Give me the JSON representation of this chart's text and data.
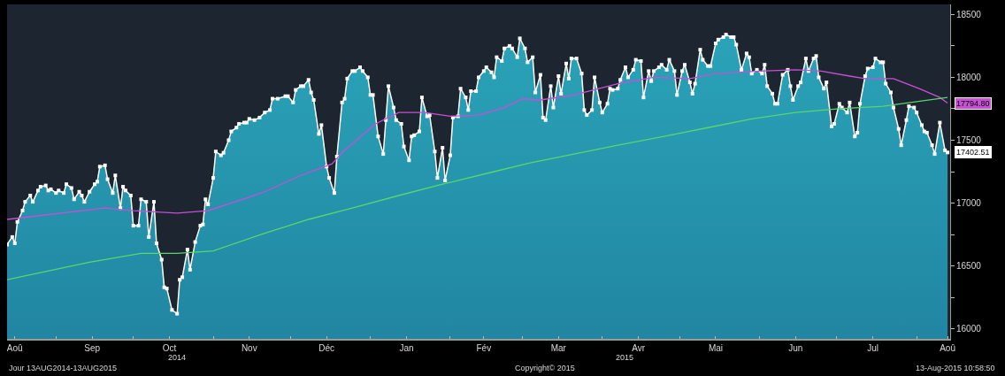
{
  "chart_data": {
    "type": "area",
    "xlim": [
      "2014-08-13",
      "2015-08-14"
    ],
    "xticks": [
      {
        "value": "2014-08-16",
        "label": "Aoû"
      },
      {
        "value": "2014-09-15",
        "label": "Sep"
      },
      {
        "value": "2014-10-15",
        "label": "Oct"
      },
      {
        "value": "2014-11-15",
        "label": "Nov"
      },
      {
        "value": "2014-12-15",
        "label": "Déc"
      },
      {
        "value": "2015-01-15",
        "label": "Jan"
      },
      {
        "value": "2015-02-14",
        "label": "Fév"
      },
      {
        "value": "2015-03-15",
        "label": "Mar"
      },
      {
        "value": "2015-04-15",
        "label": "Avr"
      },
      {
        "value": "2015-05-15",
        "label": "Mai"
      },
      {
        "value": "2015-06-15",
        "label": "Jun"
      },
      {
        "value": "2015-07-15",
        "label": "Jul"
      },
      {
        "value": "2015-08-13",
        "label": "Aoû"
      },
      {
        "value": "2014-09-01",
        "label": null
      },
      {
        "value": "2014-10-01",
        "label": null
      },
      {
        "value": "2014-11-01",
        "label": null
      },
      {
        "value": "2014-12-01",
        "label": null
      },
      {
        "value": "2015-01-01",
        "label": null
      },
      {
        "value": "2015-02-01",
        "label": null
      },
      {
        "value": "2015-03-01",
        "label": null
      },
      {
        "value": "2015-04-01",
        "label": null
      },
      {
        "value": "2015-05-01",
        "label": null
      },
      {
        "value": "2015-06-01",
        "label": null
      },
      {
        "value": "2015-07-01",
        "label": null
      },
      {
        "value": "2015-08-01",
        "label": null
      }
    ],
    "ylim": [
      15920,
      18580
    ],
    "yticks": [
      16000,
      {
        "value": 16250,
        "label": null
      },
      16500,
      {
        "value": 16750,
        "label": null
      },
      17000,
      {
        "value": 17250,
        "label": null
      },
      17500,
      {
        "value": 17750,
        "label": null
      },
      18000,
      {
        "value": 18250,
        "label": null
      },
      18500
    ],
    "grid": false,
    "annotations": [
      "2014",
      "2015",
      "Jour 13AUG2014-13AUG2015",
      "Copyright© 2015",
      "13-Aug-2015 10:58:50",
      {
        "text": "17794.80",
        "x": "2015-08-13",
        "y": 17794.8
      },
      {
        "text": "17402.51",
        "x": "2015-08-13",
        "y": 17402.51
      }
    ],
    "series": [
      {
        "color": "#ffffff",
        "marker": "square",
        "x": [
          "2014-08-13",
          "2014-08-15",
          "2014-08-16",
          "2014-08-17",
          "2014-08-19",
          "2014-08-20",
          "2014-08-22",
          "2014-08-23",
          "2014-08-25",
          "2014-08-26",
          "2014-08-28",
          "2014-08-29",
          "2014-08-30",
          "2014-09-01",
          "2014-09-02",
          "2014-09-04",
          "2014-09-05",
          "2014-09-07",
          "2014-09-08",
          "2014-09-10",
          "2014-09-11",
          "2014-09-12",
          "2014-09-14",
          "2014-09-16",
          "2014-09-17",
          "2014-09-18",
          "2014-09-20",
          "2014-09-21",
          "2014-09-23",
          "2014-09-24",
          "2014-09-26",
          "2014-09-27",
          "2014-09-28",
          "2014-09-30",
          "2014-10-01",
          "2014-10-03",
          "2014-10-04",
          "2014-10-06",
          "2014-10-07",
          "2014-10-09",
          "2014-10-10",
          "2014-10-12",
          "2014-10-13",
          "2014-10-14",
          "2014-10-16",
          "2014-10-18",
          "2014-10-19",
          "2014-10-20",
          "2014-10-22",
          "2014-10-23",
          "2014-10-25",
          "2014-10-27",
          "2014-10-28",
          "2014-10-29",
          "2014-10-30",
          "2014-11-01",
          "2014-11-02",
          "2014-11-04",
          "2014-11-05",
          "2014-11-07",
          "2014-11-08",
          "2014-11-10",
          "2014-11-11",
          "2014-11-13",
          "2014-11-14",
          "2014-11-15",
          "2014-11-17",
          "2014-11-19",
          "2014-11-21",
          "2014-11-23",
          "2014-11-24",
          "2014-11-26",
          "2014-11-29",
          "2014-11-30",
          "2014-12-02",
          "2014-12-03",
          "2014-12-05",
          "2014-12-06",
          "2014-12-08",
          "2014-12-09",
          "2014-12-10",
          "2014-12-12",
          "2014-12-13",
          "2014-12-15",
          "2014-12-16",
          "2014-12-18",
          "2014-12-19",
          "2014-12-21",
          "2014-12-22",
          "2014-12-23",
          "2014-12-25",
          "2014-12-26",
          "2014-12-28",
          "2014-12-29",
          "2014-12-31",
          "2015-01-01",
          "2015-01-02",
          "2015-01-04",
          "2015-01-06",
          "2015-01-07",
          "2015-01-08",
          "2015-01-10",
          "2015-01-11",
          "2015-01-13",
          "2015-01-14",
          "2015-01-16",
          "2015-01-17",
          "2015-01-18",
          "2015-01-20",
          "2015-01-21",
          "2015-01-23",
          "2015-01-24",
          "2015-01-26",
          "2015-01-27",
          "2015-01-29",
          "2015-01-30",
          "2015-02-01",
          "2015-02-02",
          "2015-02-04",
          "2015-02-05",
          "2015-02-07",
          "2015-02-08",
          "2015-02-09",
          "2015-02-11",
          "2015-02-12",
          "2015-02-14",
          "2015-02-15",
          "2015-02-17",
          "2015-02-18",
          "2015-02-19",
          "2015-02-21",
          "2015-02-22",
          "2015-02-24",
          "2015-02-25",
          "2015-02-27",
          "2015-02-28",
          "2015-03-02",
          "2015-03-03",
          "2015-03-05",
          "2015-03-06",
          "2015-03-08",
          "2015-03-09",
          "2015-03-10",
          "2015-03-12",
          "2015-03-13",
          "2015-03-15",
          "2015-03-16",
          "2015-03-18",
          "2015-03-19",
          "2015-03-20",
          "2015-03-22",
          "2015-03-24",
          "2015-03-25",
          "2015-03-26",
          "2015-03-28",
          "2015-03-29",
          "2015-03-31",
          "2015-04-01",
          "2015-04-03",
          "2015-04-04",
          "2015-04-05",
          "2015-04-07",
          "2015-04-08",
          "2015-04-10",
          "2015-04-11",
          "2015-04-13",
          "2015-04-14",
          "2015-04-16",
          "2015-04-17",
          "2015-04-19",
          "2015-04-20",
          "2015-04-21",
          "2015-04-23",
          "2015-04-24",
          "2015-04-26",
          "2015-04-27",
          "2015-04-29",
          "2015-04-30",
          "2015-05-02",
          "2015-05-03",
          "2015-05-05",
          "2015-05-06",
          "2015-05-07",
          "2015-05-09",
          "2015-05-10",
          "2015-05-12",
          "2015-05-13",
          "2015-05-15",
          "2015-05-16",
          "2015-05-18",
          "2015-05-19",
          "2015-05-21",
          "2015-05-22",
          "2015-05-23",
          "2015-05-25",
          "2015-05-27",
          "2015-05-28",
          "2015-05-29",
          "2015-05-31",
          "2015-06-02",
          "2015-06-03",
          "2015-06-04",
          "2015-06-06",
          "2015-06-07",
          "2015-06-08",
          "2015-06-10",
          "2015-06-12",
          "2015-06-13",
          "2015-06-14",
          "2015-06-16",
          "2015-06-17",
          "2015-06-19",
          "2015-06-20",
          "2015-06-22",
          "2015-06-23",
          "2015-06-24",
          "2015-06-26",
          "2015-06-27",
          "2015-06-29",
          "2015-06-30",
          "2015-07-02",
          "2015-07-03",
          "2015-07-05",
          "2015-07-06",
          "2015-07-08",
          "2015-07-09",
          "2015-07-10",
          "2015-07-12",
          "2015-07-13",
          "2015-07-15",
          "2015-07-16",
          "2015-07-18",
          "2015-07-19",
          "2015-07-20",
          "2015-07-22",
          "2015-07-23",
          "2015-07-25",
          "2015-07-26",
          "2015-07-28",
          "2015-07-29",
          "2015-07-31",
          "2015-08-01",
          "2015-08-03",
          "2015-08-04",
          "2015-08-05",
          "2015-08-07",
          "2015-08-08",
          "2015-08-10",
          "2015-08-12",
          "2015-08-13"
        ],
        "values": [
          16670,
          16730,
          16680,
          16850,
          16940,
          17010,
          17060,
          17010,
          17100,
          17130,
          17140,
          17100,
          17110,
          17080,
          17100,
          17080,
          17150,
          17120,
          17030,
          17090,
          17060,
          17010,
          17090,
          17150,
          17170,
          17290,
          17300,
          17190,
          17080,
          17220,
          16960,
          17130,
          17100,
          17060,
          16820,
          16820,
          17030,
          17010,
          16730,
          17010,
          16680,
          16550,
          16330,
          16320,
          16150,
          16120,
          16390,
          16410,
          16630,
          16470,
          16690,
          16820,
          16830,
          17030,
          16990,
          17200,
          17410,
          17380,
          17400,
          17500,
          17570,
          17600,
          17630,
          17640,
          17640,
          17670,
          17660,
          17680,
          17720,
          17740,
          17830,
          17830,
          17850,
          17850,
          17800,
          17900,
          17930,
          17930,
          17980,
          17880,
          17820,
          17550,
          17620,
          17290,
          17200,
          17080,
          17370,
          17800,
          17830,
          17990,
          18050,
          18050,
          18080,
          18050,
          18000,
          17860,
          17860,
          17530,
          17390,
          17660,
          17930,
          17760,
          17660,
          17630,
          17450,
          17340,
          17530,
          17540,
          17570,
          17840,
          17690,
          17700,
          17410,
          17200,
          17440,
          17180,
          17380,
          17680,
          17690,
          17910,
          17840,
          17740,
          17890,
          17890,
          18000,
          18050,
          18080,
          18040,
          18000,
          18160,
          18130,
          18230,
          18250,
          18230,
          18160,
          18310,
          18230,
          18120,
          18160,
          17880,
          18020,
          17680,
          17660,
          17930,
          17760,
          18010,
          17870,
          18110,
          17990,
          18150,
          18150,
          18030,
          17740,
          17700,
          17740,
          18000,
          17800,
          17720,
          17790,
          17910,
          17900,
          17910,
          17980,
          18080,
          18000,
          18060,
          18140,
          18130,
          17840,
          18050,
          17970,
          18050,
          18080,
          18100,
          18060,
          18140,
          18050,
          17860,
          18050,
          18100,
          17960,
          17870,
          17950,
          18220,
          18140,
          18090,
          18090,
          18270,
          18300,
          18320,
          18340,
          18320,
          18320,
          18260,
          18060,
          18190,
          18160,
          18030,
          18060,
          18030,
          18100,
          17930,
          17870,
          17790,
          17790,
          18020,
          18060,
          17930,
          17820,
          17930,
          17960,
          18150,
          18050,
          18150,
          18170,
          18000,
          17910,
          17960,
          17610,
          17630,
          17790,
          17760,
          17720,
          17800,
          17530,
          17560,
          17790,
          18010,
          18070,
          18080,
          18150,
          18120,
          18120,
          17950,
          17880,
          17760,
          17590,
          17460,
          17660,
          17770,
          17760,
          17720,
          17620,
          17570,
          17560,
          17460,
          17390,
          17640,
          17420,
          17402.51
        ]
      },
      {
        "type": "line",
        "color": "#c94fd6",
        "x": [
          "2014-08-13",
          "2014-09-20",
          "2014-10-01",
          "2014-10-18",
          "2014-10-30",
          "2014-11-14",
          "2014-11-21",
          "2014-12-05",
          "2014-12-17",
          "2014-12-22",
          "2015-01-03",
          "2015-01-12",
          "2015-01-22",
          "2015-02-01",
          "2015-02-12",
          "2015-02-22",
          "2015-03-01",
          "2015-03-08",
          "2015-03-21",
          "2015-04-07",
          "2015-04-21",
          "2015-05-05",
          "2015-05-15",
          "2015-06-01",
          "2015-06-15",
          "2015-06-25",
          "2015-07-06",
          "2015-07-12",
          "2015-07-23",
          "2015-08-02",
          "2015-08-10",
          "2015-08-13"
        ],
        "values": [
          16870,
          16960,
          16940,
          16920,
          16940,
          17040,
          17090,
          17220,
          17310,
          17420,
          17630,
          17720,
          17720,
          17690,
          17700,
          17760,
          17830,
          17820,
          17860,
          17950,
          18000,
          17990,
          18030,
          18050,
          18060,
          18050,
          18010,
          17990,
          17990,
          17910,
          17840,
          17794.8
        ]
      },
      {
        "type": "line",
        "color": "#5bd66a",
        "x": [
          "2014-08-13",
          "2014-09-14",
          "2014-10-04",
          "2014-10-18",
          "2014-11-01",
          "2014-11-21",
          "2014-12-08",
          "2014-12-25",
          "2015-01-12",
          "2015-01-29",
          "2015-02-18",
          "2015-03-04",
          "2015-03-21",
          "2015-04-07",
          "2015-04-25",
          "2015-05-12",
          "2015-05-29",
          "2015-06-15",
          "2015-07-02",
          "2015-07-19",
          "2015-08-13"
        ],
        "values": [
          16390,
          16530,
          16600,
          16600,
          16620,
          16760,
          16870,
          16960,
          17060,
          17150,
          17250,
          17320,
          17390,
          17460,
          17530,
          17600,
          17670,
          17720,
          17750,
          17770,
          17840
        ]
      }
    ]
  }
}
